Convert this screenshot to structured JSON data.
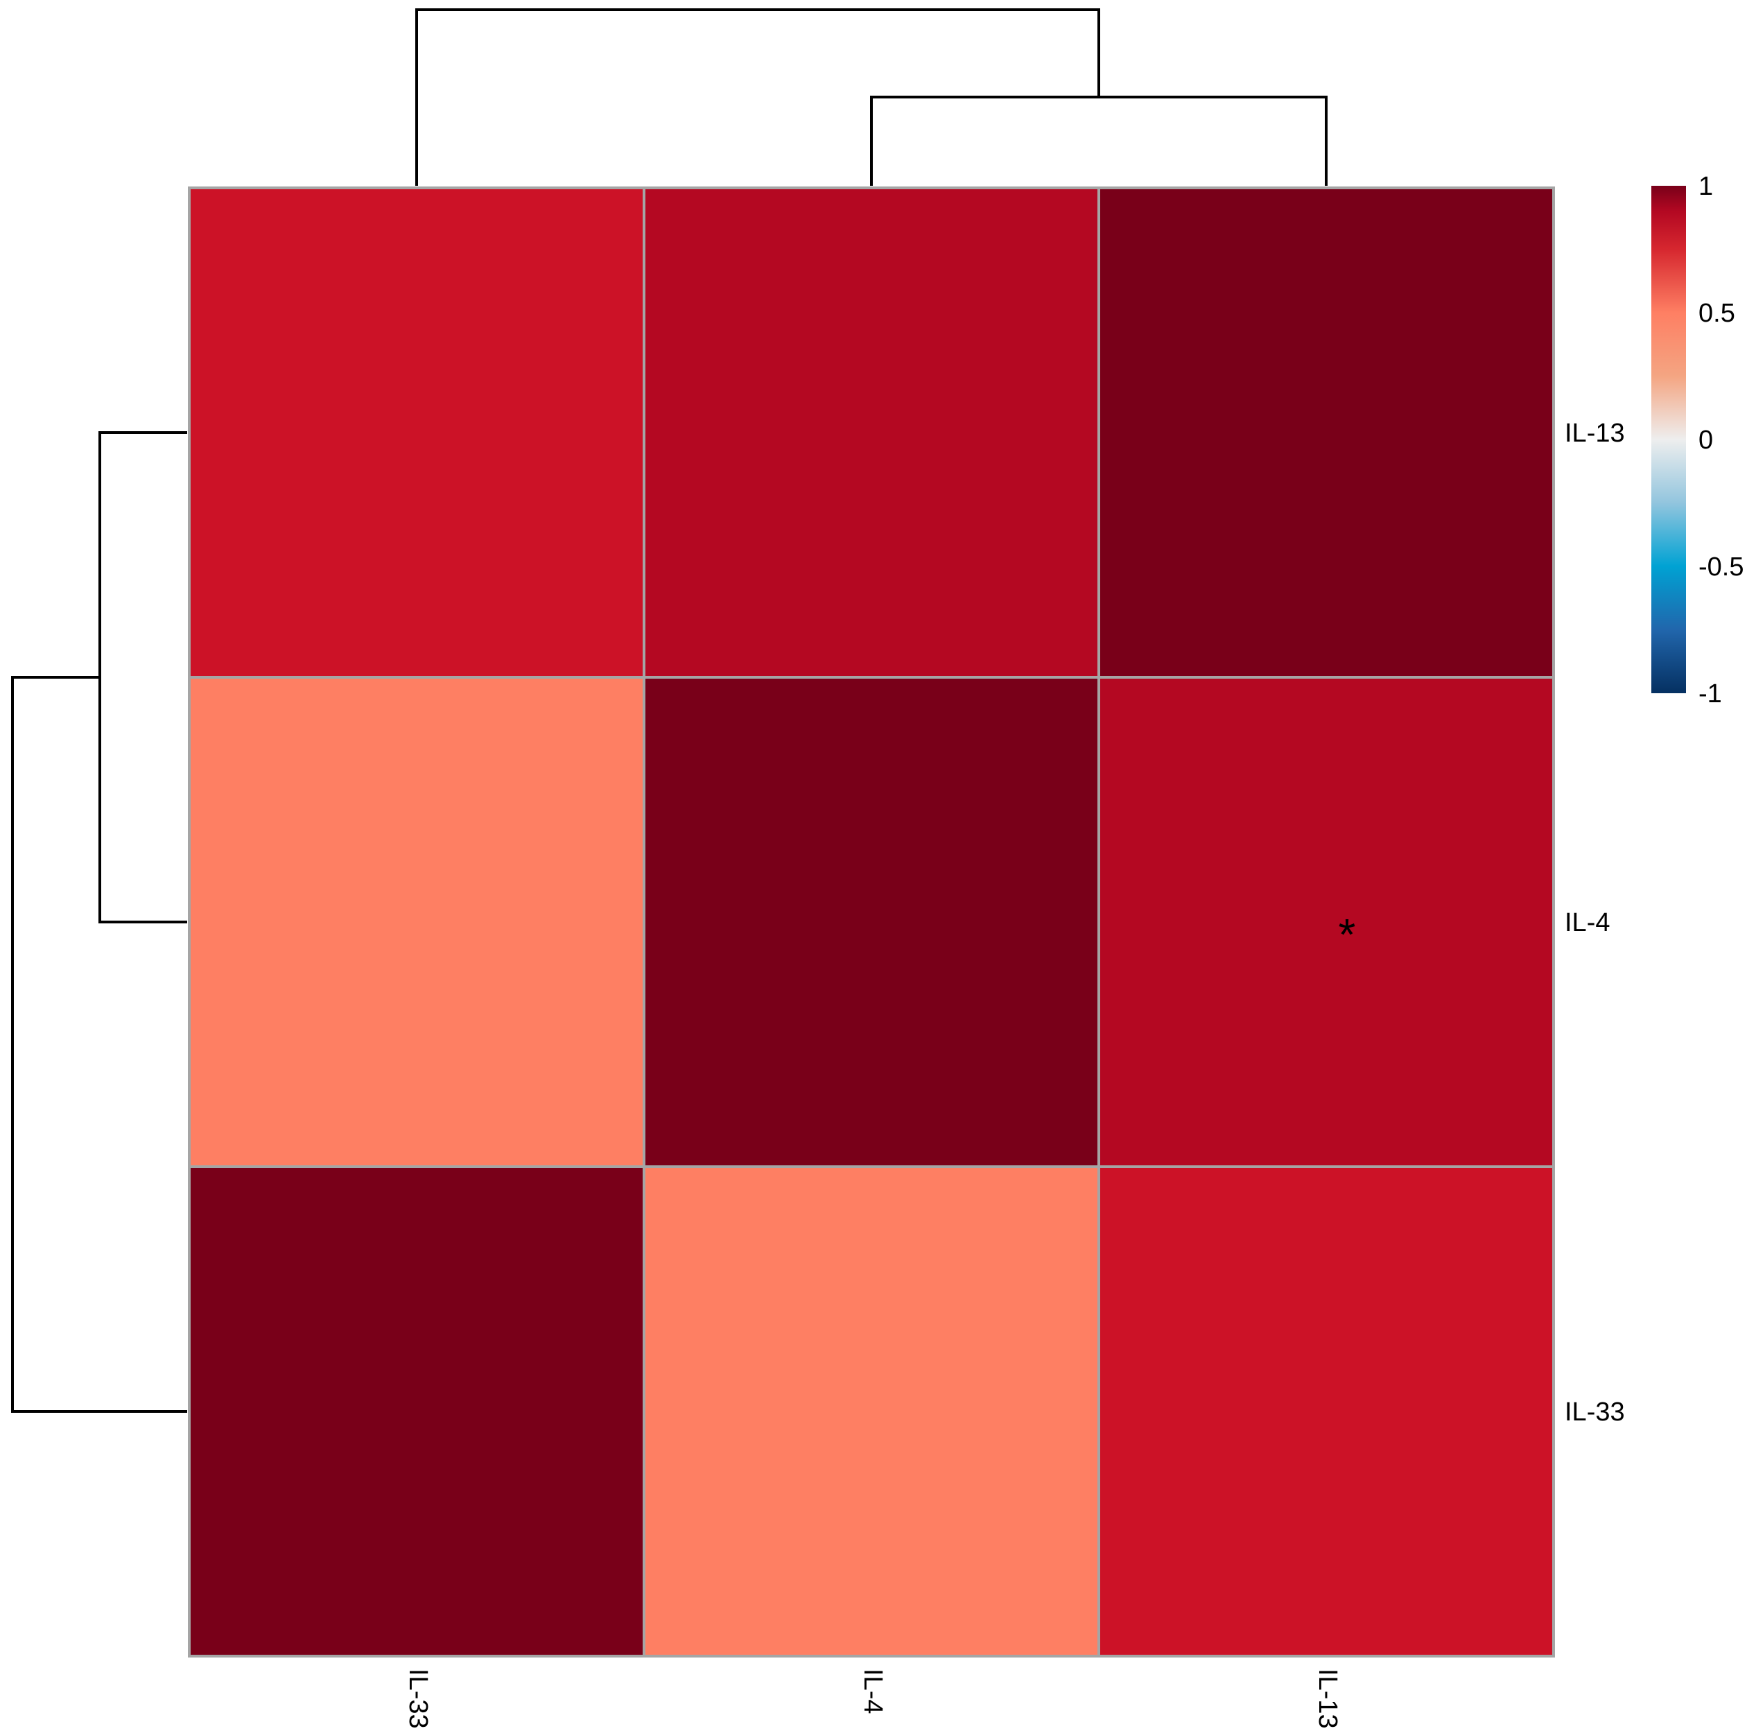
{
  "chart_data": {
    "type": "heatmap",
    "title": "",
    "xlabel": "",
    "ylabel": "",
    "columns": [
      "IL-33",
      "IL-4",
      "IL-13"
    ],
    "rows": [
      "IL-13",
      "IL-4",
      "IL-33"
    ],
    "values": [
      [
        0.87,
        0.93,
        1.0
      ],
      [
        0.5,
        1.0,
        0.93
      ],
      [
        1.0,
        0.5,
        0.87
      ]
    ],
    "annotations": [
      [
        "",
        "",
        ""
      ],
      [
        "",
        "",
        "*"
      ],
      [
        "",
        "",
        ""
      ]
    ],
    "color_scale": {
      "min": -1,
      "max": 1,
      "stops": [
        {
          "value": -1,
          "color": "#053061"
        },
        {
          "value": -0.75,
          "color": "#2166ac"
        },
        {
          "value": -0.5,
          "color": "#00a2d3"
        },
        {
          "value": -0.25,
          "color": "#92c5de"
        },
        {
          "value": 0,
          "color": "#eeeeee"
        },
        {
          "value": 0.25,
          "color": "#f4a582"
        },
        {
          "value": 0.5,
          "color": "#fe7f63"
        },
        {
          "value": 0.75,
          "color": "#d6272f"
        },
        {
          "value": 0.9,
          "color": "#b30822"
        },
        {
          "value": 1,
          "color": "#790019"
        }
      ],
      "ticks": [
        "1",
        "0.5",
        "0",
        "-0.5",
        "-1"
      ],
      "tick_values": [
        1,
        0.5,
        0,
        -0.5,
        -1
      ]
    },
    "cell_colors": [
      [
        "#cc1227",
        "#b40822",
        "#790019"
      ],
      [
        "#fe7f63",
        "#790019",
        "#b40822"
      ],
      [
        "#790019",
        "#fe7f63",
        "#cc1227"
      ]
    ],
    "grid_color": "#a5a5a5",
    "legend_placement": "top-right",
    "column_dendrogram": "IL-33 joins (IL-4, IL-13); IL-4 and IL-13 merge first",
    "row_dendrogram": "IL-33 joins (IL-13, IL-4); IL-13 and IL-4 merge first"
  }
}
